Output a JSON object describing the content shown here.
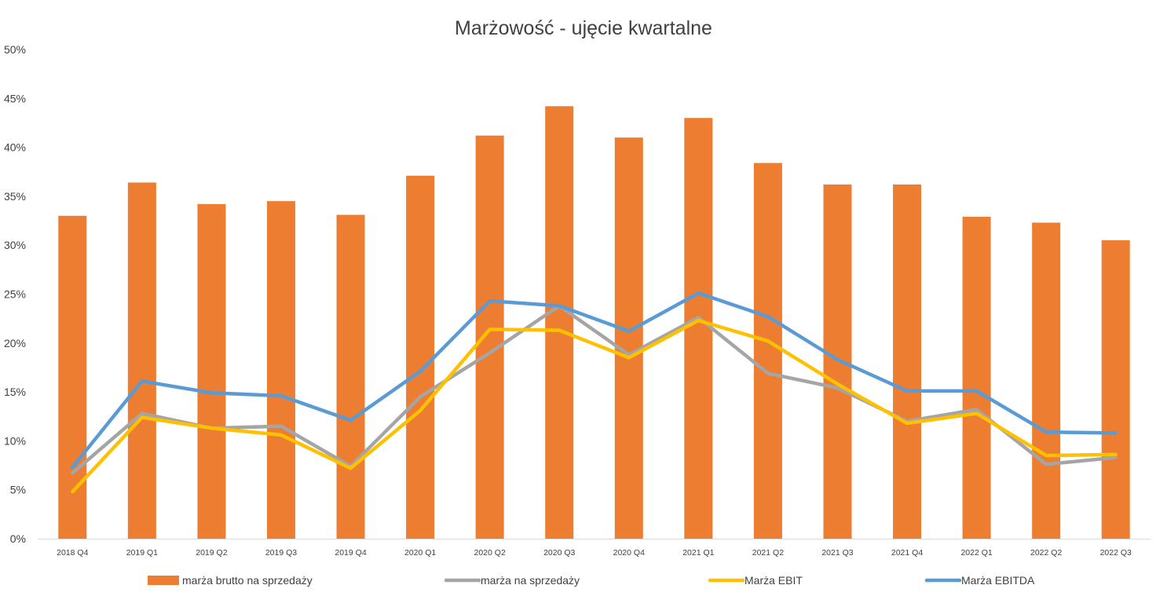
{
  "chart_data": {
    "type": "bar",
    "title": "Marżowość - ujęcie kwartalne",
    "xlabel": "",
    "ylabel": "",
    "ylim": [
      0,
      50
    ],
    "y_ticks": [
      "0%",
      "5%",
      "10%",
      "15%",
      "20%",
      "25%",
      "30%",
      "35%",
      "40%",
      "45%",
      "50%"
    ],
    "grid": false,
    "legend_position": "bottom",
    "categories": [
      "2018 Q4",
      "2019 Q1",
      "2019 Q2",
      "2019 Q3",
      "2019 Q4",
      "2020 Q1",
      "2020 Q2",
      "2020 Q3",
      "2020 Q4",
      "2021 Q1",
      "2021 Q2",
      "2021 Q3",
      "2021 Q4",
      "2022 Q1",
      "2022 Q2",
      "2022 Q3"
    ],
    "series": [
      {
        "name": "marża brutto na sprzedaży",
        "kind": "bar",
        "color": "#ED7D31",
        "values": [
          33.0,
          36.4,
          34.2,
          34.5,
          33.1,
          37.1,
          41.2,
          44.2,
          41.0,
          43.0,
          38.4,
          36.2,
          36.2,
          32.9,
          32.3,
          30.5
        ]
      },
      {
        "name": "marża na sprzedaży",
        "kind": "line",
        "color": "#A5A5A5",
        "values": [
          6.7,
          12.8,
          11.3,
          11.5,
          7.4,
          14.5,
          19.0,
          23.8,
          18.8,
          22.6,
          16.9,
          15.4,
          12.0,
          13.2,
          7.6,
          8.3
        ]
      },
      {
        "name": "Marża EBIT",
        "kind": "line",
        "color": "#FFC000",
        "values": [
          4.8,
          12.4,
          11.3,
          10.6,
          7.2,
          13.1,
          21.4,
          21.3,
          18.5,
          22.3,
          20.2,
          15.8,
          11.8,
          12.8,
          8.5,
          8.6
        ]
      },
      {
        "name": "Marża EBITDA",
        "kind": "line",
        "color": "#5B9BD5",
        "values": [
          7.3,
          16.1,
          14.9,
          14.6,
          12.1,
          17.1,
          24.3,
          23.8,
          21.2,
          25.1,
          22.7,
          18.3,
          15.1,
          15.1,
          10.9,
          10.8
        ]
      }
    ]
  },
  "colors": {
    "text": "#404040",
    "axis": "#D9D9D9"
  }
}
